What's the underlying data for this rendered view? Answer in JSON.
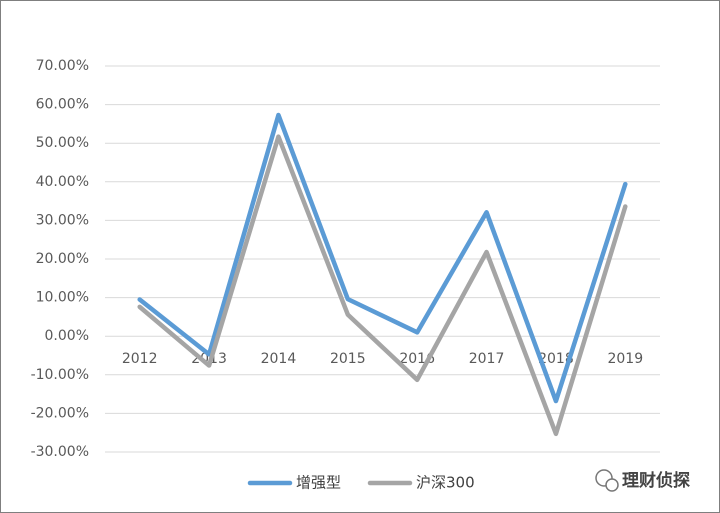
{
  "chart_data": {
    "type": "line",
    "categories": [
      "2012",
      "2013",
      "2014",
      "2015",
      "2016",
      "2017",
      "2018",
      "2019"
    ],
    "series": [
      {
        "name": "增强型",
        "color": "#5b9bd5",
        "values": [
          9.5,
          -4.7,
          57.3,
          9.6,
          1.0,
          32.1,
          -16.8,
          39.4
        ]
      },
      {
        "name": "沪深300",
        "color": "#a5a5a5",
        "values": [
          7.6,
          -7.6,
          51.7,
          5.6,
          -11.3,
          21.8,
          -25.3,
          33.6
        ]
      }
    ],
    "ylim": [
      -30,
      70
    ],
    "yticks": [
      {
        "value": -30,
        "label": "-30.00%"
      },
      {
        "value": -20,
        "label": "-20.00%"
      },
      {
        "value": -10,
        "label": "-10.00%"
      },
      {
        "value": 0,
        "label": "0.00%"
      },
      {
        "value": 10,
        "label": "10.00%"
      },
      {
        "value": 20,
        "label": "20.00%"
      },
      {
        "value": 30,
        "label": "30.00%"
      },
      {
        "value": 40,
        "label": "40.00%"
      },
      {
        "value": 50,
        "label": "50.00%"
      },
      {
        "value": 60,
        "label": "60.00%"
      },
      {
        "value": 70,
        "label": "70.00%"
      }
    ],
    "grid": true,
    "legend": "bottom",
    "watermark": "理财侦探"
  }
}
